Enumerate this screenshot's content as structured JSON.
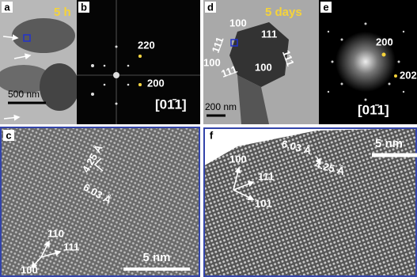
{
  "panels": [
    {
      "label": "a",
      "time": "5 h",
      "scale": "500 nm"
    },
    {
      "label": "b",
      "spots": [
        "220",
        "200"
      ],
      "zone": "[01̄1]"
    },
    {
      "label": "c",
      "spacings": [
        "4.25 Å",
        "6.03 Å"
      ],
      "directions": [
        "110",
        "111",
        "100"
      ],
      "scale": "5 nm"
    },
    {
      "label": "d",
      "time": "5 days",
      "facets": [
        "100",
        "111",
        "111",
        "111",
        "100",
        "100",
        "111"
      ],
      "scale": "200 nm"
    },
    {
      "label": "e",
      "spots": [
        "200",
        "202"
      ],
      "zone": "[01̄1]"
    },
    {
      "label": "f",
      "spacings": [
        "6.03 Å",
        "4.25 Å"
      ],
      "directions": [
        "100",
        "111",
        "101"
      ],
      "scale": "5 nm"
    }
  ]
}
